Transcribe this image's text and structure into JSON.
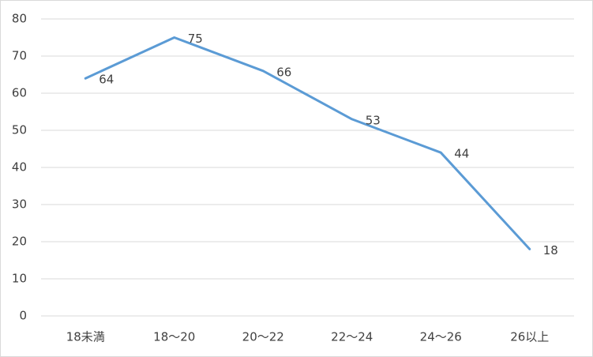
{
  "chart_data": {
    "type": "line",
    "categories": [
      "18未満",
      "18～20",
      "20～22",
      "22～24",
      "24～26",
      "26以上"
    ],
    "values": [
      64,
      75,
      66,
      53,
      44,
      18
    ],
    "color": "#5b9bd5",
    "ylim": [
      0,
      80
    ],
    "yticks": [
      0,
      10,
      20,
      30,
      40,
      50,
      60,
      70,
      80
    ],
    "grid": true,
    "data_labels": true
  }
}
